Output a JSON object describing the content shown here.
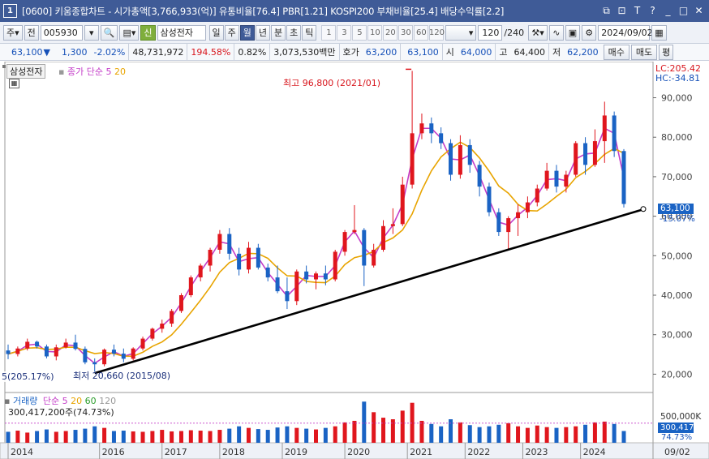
{
  "titlebar": {
    "window_number": "1",
    "title": "[0600] 키움종합차트 - 시가총액[3,766,933(억)] 유통비율[76.4] PBR[1.21] KOSPI200 부채비율[25.4] 배당수익률[2.2]",
    "icons": [
      "restore-icon",
      "link-icon",
      "font-icon",
      "help-icon",
      "minimize-icon",
      "maximize-icon",
      "close-icon"
    ]
  },
  "toolbar": {
    "market": "주",
    "all_label": "전",
    "code": "005930",
    "new_badge": "신",
    "stock_name": "삼성전자",
    "periods": [
      "일",
      "주",
      "월",
      "년",
      "분",
      "초",
      "틱"
    ],
    "active_period": "월",
    "intervals": [
      "1",
      "3",
      "5",
      "10",
      "20",
      "30",
      "60",
      "120"
    ],
    "count": "120",
    "total": "/240",
    "date": "2024/09/02"
  },
  "quote": {
    "price": "63,100",
    "change": "1,300",
    "change_pct": "-2.02%",
    "volume": "48,731,972",
    "vol_ratio": "194.58%",
    "turnover": "0.82%",
    "amount": "3,073,530백만",
    "ask_label": "호가",
    "ask": "63,200",
    "bid": "63,100",
    "open_label": "시",
    "open": "64,000",
    "high_label": "고",
    "high": "64,400",
    "low_label": "저",
    "low": "62,200",
    "buy_label": "매수",
    "sell_label": "매도",
    "eval_label": "평"
  },
  "legend": {
    "stock_name": "삼성전자",
    "ma_label": "종가 단순",
    "ma_periods": [
      "5",
      "20"
    ],
    "lc": "LC:205.42",
    "hc": "HC:-34.81",
    "high_annotation": "최고 96,800 (2021/01)",
    "low_annotation": "최저 20,660 (2015/08)",
    "left_annotation": "5(205.17%)",
    "price_tag": "63,100",
    "price_pct": "-15.07%"
  },
  "volume_legend": {
    "label": "거래량",
    "ma_label": "단순",
    "periods": [
      "5",
      "20",
      "60",
      "120"
    ],
    "value": "300,417,200주(74.73%)",
    "axis_500k": "500,000K",
    "axis_last": "300,417K",
    "axis_pct": "74.73%"
  },
  "colors": {
    "up": "#e0161d",
    "down": "#1a63c4",
    "ma5": "#c43dc8",
    "ma20": "#e8a400",
    "trend": "#000000",
    "header": "#3f5b97"
  },
  "chart_data": {
    "type": "candlestick",
    "title": "삼성전자",
    "y_axis_ticks": [
      "90,000",
      "80,000",
      "70,000",
      "60,000",
      "50,000",
      "40,000",
      "30,000",
      "20,000"
    ],
    "y_range": [
      17000,
      97500
    ],
    "x_ticks": [
      "2014",
      "2016",
      "2017",
      "2018",
      "2019",
      "2020",
      "2021",
      "2022",
      "2023",
      "2024",
      "09/02"
    ],
    "x_tick_dates": [
      "2014-01",
      "2015-08",
      "2016-09",
      "2017-09",
      "2018-10",
      "2019-11",
      "2020-12",
      "2021-12",
      "2022-12",
      "2023-12"
    ],
    "candles": [
      {
        "d": "2014-01",
        "o": 26000,
        "h": 27500,
        "l": 23800,
        "c": 25100
      },
      {
        "d": "2014-03",
        "o": 25100,
        "h": 27000,
        "l": 24500,
        "c": 26500
      },
      {
        "d": "2014-05",
        "o": 26500,
        "h": 29000,
        "l": 26000,
        "c": 28200
      },
      {
        "d": "2014-07",
        "o": 28200,
        "h": 28500,
        "l": 26500,
        "c": 27000
      },
      {
        "d": "2014-09",
        "o": 27000,
        "h": 27500,
        "l": 24000,
        "c": 24500
      },
      {
        "d": "2014-11",
        "o": 24500,
        "h": 27500,
        "l": 23500,
        "c": 26800
      },
      {
        "d": "2015-01",
        "o": 26800,
        "h": 29000,
        "l": 26500,
        "c": 28000
      },
      {
        "d": "2015-03",
        "o": 28000,
        "h": 30000,
        "l": 26000,
        "c": 26400
      },
      {
        "d": "2015-05",
        "o": 26400,
        "h": 27000,
        "l": 22500,
        "c": 23000
      },
      {
        "d": "2015-07",
        "o": 23000,
        "h": 24000,
        "l": 20660,
        "c": 22500
      },
      {
        "d": "2015-09",
        "o": 22500,
        "h": 26500,
        "l": 22000,
        "c": 26200
      },
      {
        "d": "2015-11",
        "o": 26200,
        "h": 27500,
        "l": 24500,
        "c": 25200
      },
      {
        "d": "2016-01",
        "o": 25200,
        "h": 26500,
        "l": 23000,
        "c": 23900
      },
      {
        "d": "2016-03",
        "o": 23900,
        "h": 26800,
        "l": 23500,
        "c": 26500
      },
      {
        "d": "2016-05",
        "o": 26500,
        "h": 29500,
        "l": 26000,
        "c": 29000
      },
      {
        "d": "2016-07",
        "o": 29000,
        "h": 31800,
        "l": 28500,
        "c": 31500
      },
      {
        "d": "2016-09",
        "o": 31500,
        "h": 33800,
        "l": 30500,
        "c": 32800
      },
      {
        "d": "2016-11",
        "o": 32800,
        "h": 36500,
        "l": 32000,
        "c": 36000
      },
      {
        "d": "2017-01",
        "o": 36000,
        "h": 40500,
        "l": 35500,
        "c": 40000
      },
      {
        "d": "2017-03",
        "o": 40000,
        "h": 45000,
        "l": 39500,
        "c": 44500
      },
      {
        "d": "2017-05",
        "o": 44500,
        "h": 48000,
        "l": 43500,
        "c": 47500
      },
      {
        "d": "2017-07",
        "o": 47500,
        "h": 52000,
        "l": 46000,
        "c": 51500
      },
      {
        "d": "2017-09",
        "o": 51500,
        "h": 56500,
        "l": 50500,
        "c": 55500
      },
      {
        "d": "2017-11",
        "o": 55500,
        "h": 57000,
        "l": 49000,
        "c": 50500
      },
      {
        "d": "2018-01",
        "o": 50500,
        "h": 52000,
        "l": 45000,
        "c": 46500
      },
      {
        "d": "2018-03",
        "o": 46500,
        "h": 53500,
        "l": 45500,
        "c": 52000
      },
      {
        "d": "2018-05",
        "o": 52000,
        "h": 53000,
        "l": 46500,
        "c": 47000
      },
      {
        "d": "2018-07",
        "o": 47000,
        "h": 48000,
        "l": 43500,
        "c": 44500
      },
      {
        "d": "2018-09",
        "o": 44500,
        "h": 47500,
        "l": 40500,
        "c": 41000
      },
      {
        "d": "2018-11",
        "o": 41000,
        "h": 44500,
        "l": 36500,
        "c": 38500
      },
      {
        "d": "2019-01",
        "o": 38500,
        "h": 46500,
        "l": 37500,
        "c": 46000
      },
      {
        "d": "2019-03",
        "o": 46000,
        "h": 47500,
        "l": 43000,
        "c": 44000
      },
      {
        "d": "2019-05",
        "o": 44000,
        "h": 46000,
        "l": 41500,
        "c": 45500
      },
      {
        "d": "2019-07",
        "o": 45500,
        "h": 47500,
        "l": 42500,
        "c": 44000
      },
      {
        "d": "2019-09",
        "o": 44000,
        "h": 51500,
        "l": 43500,
        "c": 51000
      },
      {
        "d": "2019-11",
        "o": 51000,
        "h": 56500,
        "l": 50000,
        "c": 56000
      },
      {
        "d": "2020-01",
        "o": 56000,
        "h": 62800,
        "l": 55500,
        "c": 56500
      },
      {
        "d": "2020-03",
        "o": 56500,
        "h": 57000,
        "l": 42300,
        "c": 47500
      },
      {
        "d": "2020-05",
        "o": 47500,
        "h": 53000,
        "l": 47000,
        "c": 51500
      },
      {
        "d": "2020-07",
        "o": 51500,
        "h": 59000,
        "l": 51000,
        "c": 57500
      },
      {
        "d": "2020-09",
        "o": 57500,
        "h": 62000,
        "l": 55500,
        "c": 58000
      },
      {
        "d": "2020-11",
        "o": 58000,
        "h": 70000,
        "l": 57500,
        "c": 68000
      },
      {
        "d": "2021-01",
        "o": 68000,
        "h": 96800,
        "l": 67000,
        "c": 81000
      },
      {
        "d": "2021-03",
        "o": 81000,
        "h": 86000,
        "l": 79500,
        "c": 83500
      },
      {
        "d": "2021-05",
        "o": 83500,
        "h": 85000,
        "l": 78500,
        "c": 81000
      },
      {
        "d": "2021-07",
        "o": 81000,
        "h": 82500,
        "l": 77000,
        "c": 78500
      },
      {
        "d": "2021-09",
        "o": 78500,
        "h": 79500,
        "l": 69000,
        "c": 70500
      },
      {
        "d": "2021-11",
        "o": 70500,
        "h": 80500,
        "l": 69500,
        "c": 78000
      },
      {
        "d": "2022-01",
        "o": 78000,
        "h": 79500,
        "l": 71000,
        "c": 73000
      },
      {
        "d": "2022-03",
        "o": 73000,
        "h": 74000,
        "l": 65000,
        "c": 67500
      },
      {
        "d": "2022-05",
        "o": 67500,
        "h": 68500,
        "l": 60000,
        "c": 61000
      },
      {
        "d": "2022-07",
        "o": 61000,
        "h": 62000,
        "l": 55000,
        "c": 56000
      },
      {
        "d": "2022-09",
        "o": 56000,
        "h": 60000,
        "l": 51800,
        "c": 59500
      },
      {
        "d": "2022-11",
        "o": 59500,
        "h": 63000,
        "l": 55000,
        "c": 61000
      },
      {
        "d": "2023-01",
        "o": 61000,
        "h": 65000,
        "l": 59500,
        "c": 63500
      },
      {
        "d": "2023-03",
        "o": 63500,
        "h": 68000,
        "l": 62500,
        "c": 67000
      },
      {
        "d": "2023-05",
        "o": 67000,
        "h": 73500,
        "l": 66500,
        "c": 71500
      },
      {
        "d": "2023-07",
        "o": 71500,
        "h": 73000,
        "l": 66000,
        "c": 67500
      },
      {
        "d": "2023-09",
        "o": 67500,
        "h": 71500,
        "l": 66000,
        "c": 70500
      },
      {
        "d": "2023-11",
        "o": 70500,
        "h": 79000,
        "l": 70000,
        "c": 78500
      },
      {
        "d": "2024-01",
        "o": 78500,
        "h": 80000,
        "l": 70500,
        "c": 73000
      },
      {
        "d": "2024-03",
        "o": 73000,
        "h": 82000,
        "l": 72500,
        "c": 79000
      },
      {
        "d": "2024-05",
        "o": 79000,
        "h": 89000,
        "l": 73500,
        "c": 85500
      },
      {
        "d": "2024-07",
        "o": 85500,
        "h": 86500,
        "l": 75000,
        "c": 76500
      },
      {
        "d": "2024-09",
        "o": 76500,
        "h": 77000,
        "l": 62200,
        "c": 63100
      }
    ],
    "trendline": [
      {
        "d": "2015-08",
        "v": 20660
      },
      {
        "d": "2024-09",
        "v": 61000
      }
    ],
    "volume_max_k": 1200000,
    "volumes_k": [
      280000,
      310000,
      260000,
      300000,
      340000,
      280000,
      300000,
      330000,
      360000,
      420000,
      380000,
      300000,
      310000,
      290000,
      280000,
      300000,
      330000,
      290000,
      300000,
      320000,
      310000,
      300000,
      330000,
      360000,
      420000,
      380000,
      350000,
      330000,
      390000,
      420000,
      380000,
      360000,
      340000,
      380000,
      420000,
      520000,
      560000,
      1050000,
      780000,
      640000,
      600000,
      820000,
      1020000,
      560000,
      480000,
      420000,
      600000,
      520000,
      450000,
      400000,
      420000,
      460000,
      500000,
      420000,
      380000,
      440000,
      400000,
      380000,
      400000,
      420000,
      460000,
      520000,
      540000,
      480000,
      300417
    ]
  }
}
